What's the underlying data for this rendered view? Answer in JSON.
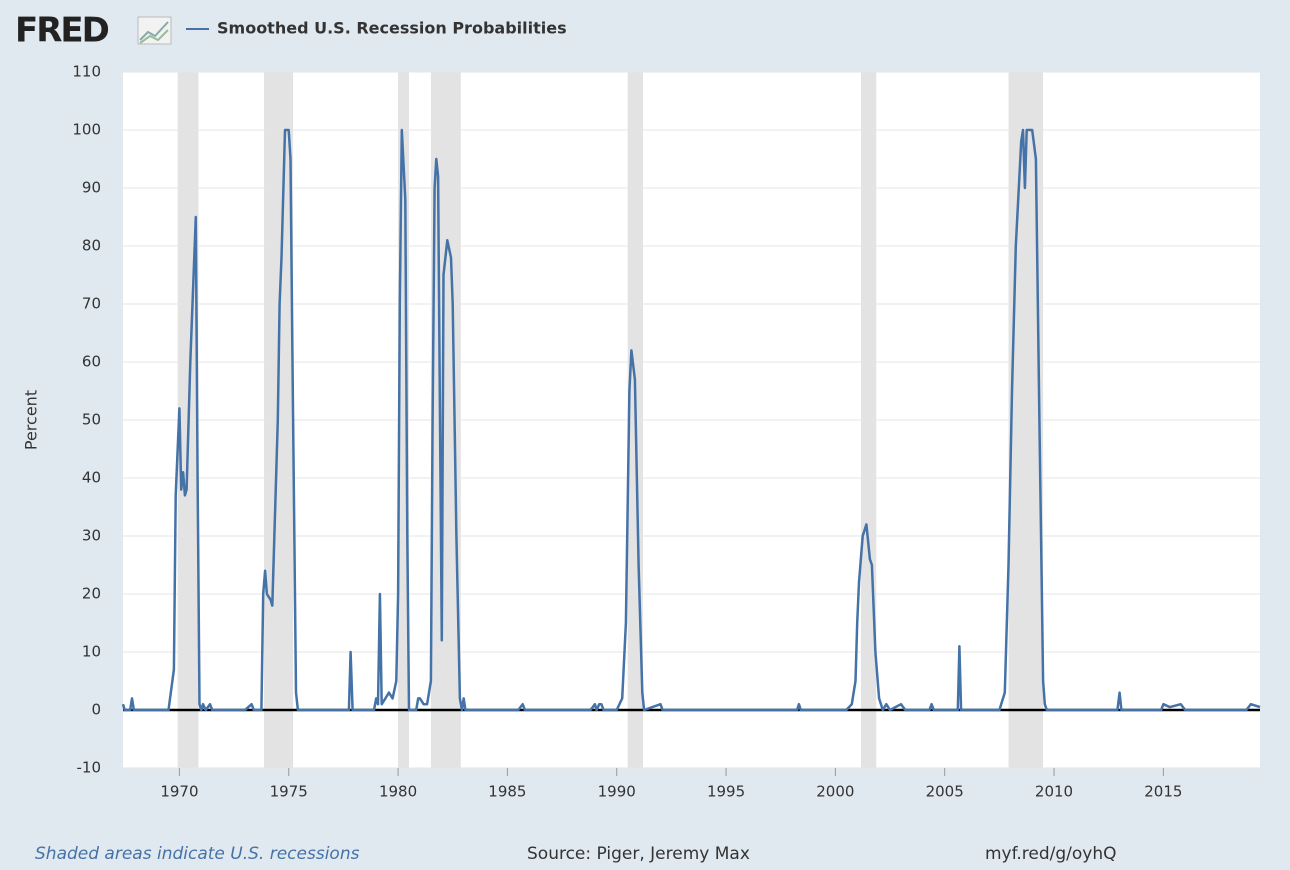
{
  "header": {
    "logo": "FRED"
  },
  "chart_data": {
    "type": "line",
    "y_label": "Percent",
    "xlim": [
      1967.42,
      2019.42
    ],
    "ylim": [
      -10,
      110
    ],
    "yticks": [
      -10,
      0,
      10,
      20,
      30,
      40,
      50,
      60,
      70,
      80,
      90,
      100,
      110
    ],
    "xticks": [
      1970,
      1975,
      1980,
      1985,
      1990,
      1995,
      2000,
      2005,
      2010,
      2015
    ],
    "grid": true,
    "recessions": [
      [
        1969.92,
        1970.87
      ],
      [
        1973.87,
        1975.2
      ],
      [
        1980.0,
        1980.5
      ],
      [
        1981.5,
        1982.87
      ],
      [
        1990.5,
        1991.2
      ],
      [
        2001.17,
        2001.87
      ],
      [
        2007.92,
        2009.5
      ]
    ],
    "recession_color": "#e3e3e3",
    "x": [
      1967.42,
      1967.5,
      1967.75,
      1967.83,
      1967.92,
      1968.5,
      1969.5,
      1969.75,
      1969.83,
      1970.0,
      1970.08,
      1970.17,
      1970.25,
      1970.33,
      1970.5,
      1970.75,
      1970.83,
      1970.92,
      1971.0,
      1971.08,
      1971.2,
      1971.4,
      1971.5,
      1972.5,
      1973.0,
      1973.3,
      1973.4,
      1973.75,
      1973.83,
      1973.92,
      1974.0,
      1974.17,
      1974.25,
      1974.5,
      1974.58,
      1974.67,
      1974.83,
      1975.0,
      1975.08,
      1975.17,
      1975.33,
      1975.42,
      1977.75,
      1977.83,
      1977.92,
      1978.9,
      1979.0,
      1979.08,
      1979.17,
      1979.25,
      1979.42,
      1979.58,
      1979.75,
      1979.92,
      1980.0,
      1980.08,
      1980.17,
      1980.33,
      1980.42,
      1980.5,
      1980.83,
      1980.92,
      1981.0,
      1981.17,
      1981.33,
      1981.5,
      1981.58,
      1981.67,
      1981.75,
      1981.83,
      1981.92,
      1982.0,
      1982.08,
      1982.25,
      1982.42,
      1982.5,
      1982.67,
      1982.83,
      1982.92,
      1983.0,
      1983.08,
      1985.5,
      1985.7,
      1985.8,
      1988.8,
      1989.0,
      1989.08,
      1989.2,
      1989.3,
      1989.4,
      1990.0,
      1990.25,
      1990.42,
      1990.58,
      1990.67,
      1990.83,
      1991.0,
      1991.17,
      1991.25,
      1992.0,
      1992.1,
      1998.25,
      1998.33,
      1998.42,
      2000.5,
      2000.75,
      2000.92,
      2001.0,
      2001.08,
      2001.25,
      2001.42,
      2001.58,
      2001.67,
      2001.83,
      2002.0,
      2002.17,
      2002.33,
      2002.5,
      2003.0,
      2003.2,
      2004.3,
      2004.4,
      2004.5,
      2005.6,
      2005.67,
      2005.75,
      2007.5,
      2007.75,
      2007.92,
      2008.08,
      2008.25,
      2008.5,
      2008.58,
      2008.67,
      2008.75,
      2009.0,
      2009.17,
      2009.33,
      2009.5,
      2009.58,
      2009.67,
      2012.9,
      2013.0,
      2013.08,
      2014.9,
      2015.0,
      2015.3,
      2015.8,
      2016.0,
      2018.8,
      2019.0,
      2019.42
    ],
    "series": [
      {
        "name": "Smoothed U.S. Recession Probabilities",
        "color": "#4572a7",
        "values": [
          1,
          0,
          0,
          2,
          0,
          0,
          0,
          7,
          37,
          52,
          38,
          41,
          37,
          38,
          60,
          85,
          40,
          1,
          0,
          1,
          0,
          1,
          0,
          0,
          0,
          1,
          0,
          0,
          20,
          24,
          20,
          19,
          18,
          50,
          70,
          78,
          100,
          100,
          95,
          60,
          3,
          0,
          0,
          10,
          0,
          0,
          2,
          1,
          20,
          1,
          2,
          3,
          2,
          5,
          20,
          70,
          100,
          88,
          30,
          0,
          0,
          2,
          2,
          1,
          1,
          5,
          50,
          90,
          95,
          92,
          50,
          12,
          75,
          81,
          78,
          70,
          30,
          2,
          0,
          2,
          0,
          0,
          1,
          0,
          0,
          1,
          0,
          1,
          1,
          0,
          0,
          2,
          15,
          55,
          62,
          57,
          25,
          3,
          0,
          1,
          0,
          0,
          1,
          0,
          0,
          1,
          5,
          15,
          22,
          30,
          32,
          26,
          25,
          10,
          2,
          0,
          1,
          0,
          1,
          0,
          0,
          1,
          0,
          0,
          11,
          0,
          0,
          3,
          25,
          55,
          80,
          98,
          100,
          90,
          100,
          100,
          95,
          50,
          5,
          1,
          0,
          0,
          3,
          0,
          0,
          1,
          0.5,
          1,
          0,
          0,
          1,
          0.5
        ]
      }
    ]
  },
  "footer": {
    "note": "Shaded areas indicate U.S. recessions",
    "source": "Source: Piger, Jeremy Max",
    "link": "myf.red/g/oyhQ"
  }
}
